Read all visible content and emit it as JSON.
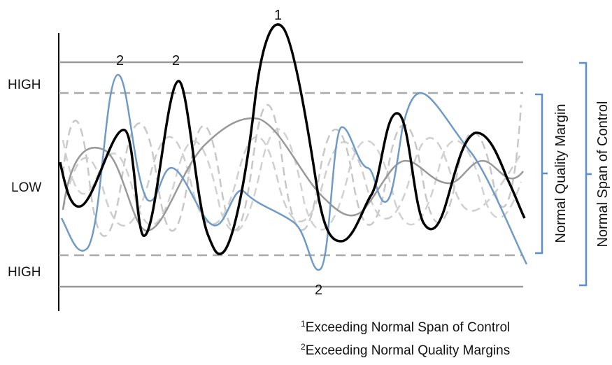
{
  "axis_labels": {
    "high_top": "HIGH",
    "low": "LOW",
    "high_bottom": "HIGH"
  },
  "markers": {
    "span_peak": "1",
    "margin_peak_a": "2",
    "margin_peak_b": "2",
    "margin_trough": "2"
  },
  "brackets": {
    "quality_margin": "Normal Quality Margin",
    "span_of_control": "Normal Span of Control"
  },
  "footnotes": [
    {
      "mark": "1",
      "text": "Exceeding Normal Span of Control"
    },
    {
      "mark": "2",
      "text": "Exceeding Normal Quality Margins"
    }
  ],
  "colors": {
    "black_series": "#000000",
    "blue_series": "#6f9bc6",
    "gray_series": "#999999",
    "dashed_series": "#c8c8c8",
    "span_limit_line": "#999999",
    "margin_limit_line": "#aaaaaa",
    "bracket": "#5b8fcf"
  }
}
